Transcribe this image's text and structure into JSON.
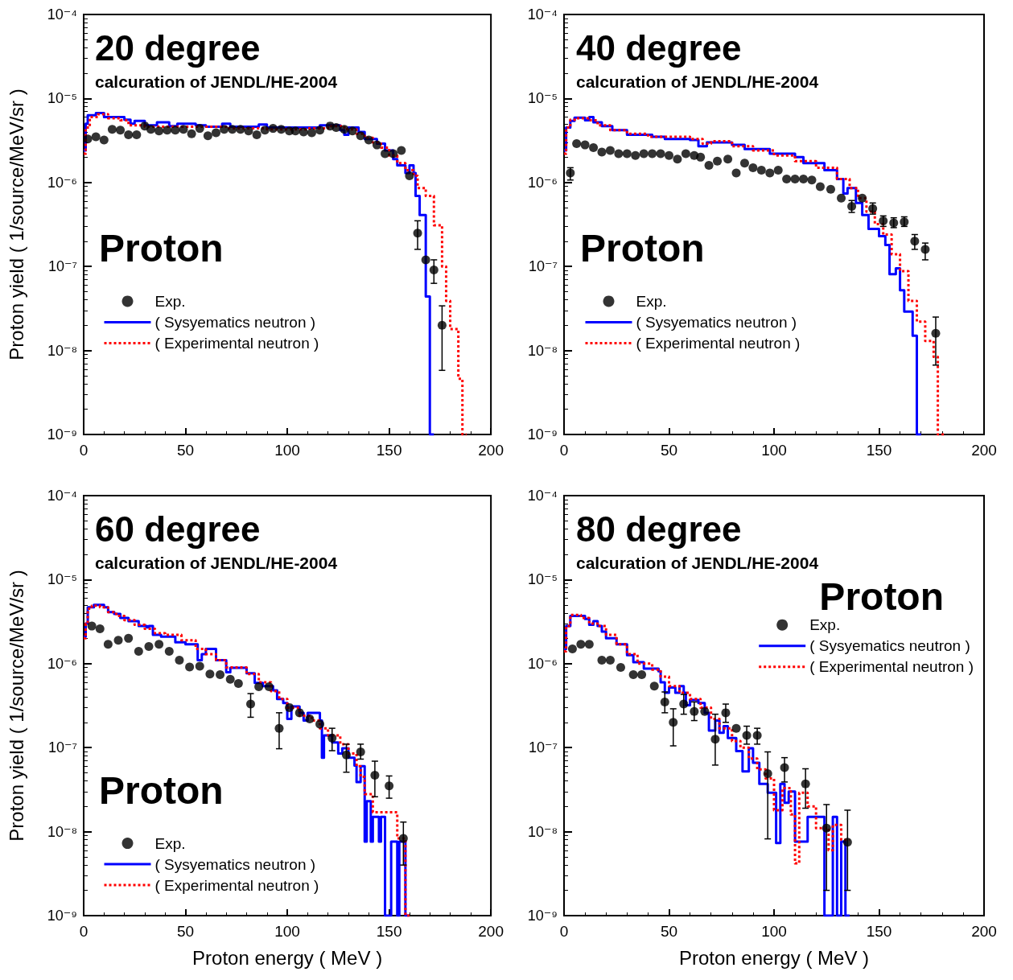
{
  "chart_data": [
    {
      "type": "step",
      "title": "20 degree",
      "subtitle": "calcuration of JENDL/HE-2004",
      "ylabel": "Proton yield ( 1/source/MeV/sr )",
      "annotations": [
        "Proton"
      ],
      "log": "y",
      "legend": "left",
      "grid": false,
      "xlim": [
        0,
        200
      ],
      "xticks": [
        0,
        50,
        100,
        150,
        200
      ],
      "ylim": [
        1e-09,
        0.0001
      ],
      "yticks": [
        {
          "value": 1e-09,
          "label": "10⁻⁹"
        },
        {
          "value": 1e-08,
          "label": "10⁻⁸"
        },
        {
          "value": 1e-07,
          "label": "10⁻⁷"
        },
        {
          "value": 1e-06,
          "label": "10⁻⁶"
        },
        {
          "value": 1e-05,
          "label": "10⁻⁵"
        },
        {
          "value": 0.0001,
          "label": "10⁻⁴"
        }
      ],
      "series": [
        {
          "name": "Exp.",
          "type": "scatter",
          "marker": "circle",
          "color": "#000000",
          "x": [
            2,
            6,
            10,
            14,
            18,
            22,
            26,
            30,
            33,
            37,
            41,
            45,
            49,
            53,
            57,
            61,
            65,
            69,
            73,
            77,
            81,
            85,
            89,
            93,
            97,
            101,
            104,
            108,
            112,
            116,
            121,
            124,
            128,
            132,
            136,
            140,
            144,
            148,
            152,
            156,
            160,
            164,
            168,
            172,
            176
          ],
          "values": [
            3.3e-06,
            3.5e-06,
            3.2e-06,
            4.3e-06,
            4.2e-06,
            3.7e-06,
            3.7e-06,
            4.7e-06,
            4.3e-06,
            4.1e-06,
            4.2e-06,
            4.2e-06,
            4.3e-06,
            3.8e-06,
            4.4e-06,
            3.6e-06,
            3.9e-06,
            4.3e-06,
            4.3e-06,
            4.3e-06,
            4.1e-06,
            3.7e-06,
            4.2e-06,
            4.4e-06,
            4.3e-06,
            4.1e-06,
            4.1e-06,
            4e-06,
            3.9e-06,
            4.2e-06,
            4.7e-06,
            4.5e-06,
            4.3e-06,
            4.1e-06,
            3.6e-06,
            3.2e-06,
            2.8e-06,
            2.2e-06,
            2.2e-06,
            2.4e-06,
            1.2e-06,
            2.5e-07,
            1.2e-07,
            9.1e-08,
            2e-08
          ],
          "errors": [
            null,
            null,
            null,
            null,
            null,
            null,
            null,
            null,
            null,
            null,
            null,
            null,
            null,
            null,
            null,
            null,
            null,
            null,
            null,
            null,
            null,
            null,
            null,
            null,
            null,
            null,
            null,
            null,
            null,
            null,
            null,
            null,
            null,
            null,
            null,
            null,
            null,
            null,
            null,
            null,
            null,
            [
              1.6e-07,
              3.5e-07
            ],
            null,
            [
              6.3e-08,
              1.2e-07
            ],
            [
              5.8e-09,
              3.4e-08
            ]
          ]
        },
        {
          "name": "( Sysyematics neutron )",
          "line_style": "solid",
          "color": "#0000ff",
          "x": [
            0,
            1,
            2,
            6,
            10,
            20,
            23,
            25,
            30,
            36,
            42,
            46,
            55,
            60,
            68,
            72,
            86,
            90,
            104,
            116,
            126,
            128,
            130,
            135,
            138,
            144,
            148,
            152,
            154,
            158,
            160,
            162,
            163,
            165,
            168,
            170,
            172
          ],
          "values": [
            2.4e-06,
            5e-06,
            6.3e-06,
            6.7e-06,
            6e-06,
            5.6e-06,
            5e-06,
            5.4e-06,
            4.8e-06,
            5.2e-06,
            4.7e-06,
            5e-06,
            4.8e-06,
            4.6e-06,
            5e-06,
            4.6e-06,
            4.9e-06,
            4.5e-06,
            4.5e-06,
            4.8e-06,
            4.2e-06,
            3.7e-06,
            4.5e-06,
            4e-06,
            3.3e-06,
            2.9e-06,
            2.4e-06,
            1.9e-06,
            1.6e-06,
            1.3e-06,
            1.6e-06,
            1.3e-06,
            6.9e-07,
            4.1e-07,
            4.4e-08,
            1e-09,
            1e-09
          ]
        },
        {
          "name": "( Experimental neutron )",
          "line_style": "dotted",
          "color": "#ff0000",
          "x": [
            0,
            1,
            3,
            7,
            12,
            18,
            22,
            30,
            50,
            70,
            90,
            110,
            120,
            128,
            134,
            138,
            142,
            146,
            150,
            154,
            158,
            162,
            164,
            168,
            172,
            176,
            178,
            180,
            184,
            186,
            188
          ],
          "values": [
            2.2e-06,
            4.5e-06,
            6e-06,
            6.5e-06,
            5.8e-06,
            5.5e-06,
            4.8e-06,
            4.6e-06,
            4.6e-06,
            4.4e-06,
            4.3e-06,
            4.4e-06,
            4.7e-06,
            4.3e-06,
            3.8e-06,
            3.4e-06,
            3e-06,
            2.6e-06,
            2.1e-06,
            1.7e-06,
            1.4e-06,
            1.2e-06,
            8.6e-07,
            6.9e-07,
            3.1e-07,
            1e-07,
            3.9e-08,
            1.8e-08,
            4.6e-09,
            1e-09,
            1e-09
          ]
        }
      ]
    },
    {
      "type": "step",
      "title": "40 degree",
      "subtitle": "calcuration of JENDL/HE-2004",
      "annotations": [
        "Proton"
      ],
      "log": "y",
      "legend": "left",
      "grid": false,
      "xlim": [
        0,
        200
      ],
      "xticks": [
        0,
        50,
        100,
        150,
        200
      ],
      "ylim": [
        1e-09,
        0.0001
      ],
      "yticks": [
        {
          "value": 1e-09,
          "label": "10⁻⁹"
        },
        {
          "value": 1e-08,
          "label": "10⁻⁸"
        },
        {
          "value": 1e-07,
          "label": "10⁻⁷"
        },
        {
          "value": 1e-06,
          "label": "10⁻⁶"
        },
        {
          "value": 1e-05,
          "label": "10⁻⁵"
        },
        {
          "value": 0.0001,
          "label": "10⁻⁴"
        }
      ],
      "series": [
        {
          "name": "Exp.",
          "type": "scatter",
          "marker": "circle",
          "color": "#000000",
          "x": [
            3,
            6,
            10,
            14,
            18,
            22,
            26,
            30,
            34,
            38,
            42,
            46,
            50,
            54,
            58,
            62,
            65,
            69,
            73,
            78,
            82,
            86,
            90,
            94,
            98,
            102,
            106,
            110,
            114,
            118,
            122,
            127,
            132,
            137,
            142,
            147,
            152,
            157,
            162,
            167,
            172,
            177
          ],
          "values": [
            1.3e-06,
            2.9e-06,
            2.8e-06,
            2.6e-06,
            2.3e-06,
            2.4e-06,
            2.2e-06,
            2.2e-06,
            2.1e-06,
            2.2e-06,
            2.2e-06,
            2.2e-06,
            2.1e-06,
            1.9e-06,
            2.2e-06,
            2.1e-06,
            2e-06,
            1.6e-06,
            1.8e-06,
            1.9e-06,
            1.3e-06,
            1.7e-06,
            1.5e-06,
            1.4e-06,
            1.3e-06,
            1.4e-06,
            1.1e-06,
            1.1e-06,
            1.1e-06,
            1.07e-06,
            8.9e-07,
            8.3e-07,
            6.5e-07,
            5.2e-07,
            6.5e-07,
            4.9e-07,
            3.5e-07,
            3.3e-07,
            3.4e-07,
            2e-07,
            1.6e-07,
            1.6e-08
          ],
          "errors": [
            [
              1.07e-06,
              1.5e-06
            ],
            null,
            null,
            null,
            null,
            null,
            null,
            null,
            null,
            null,
            null,
            null,
            null,
            null,
            null,
            null,
            null,
            null,
            null,
            null,
            null,
            null,
            null,
            null,
            null,
            null,
            null,
            null,
            null,
            null,
            null,
            null,
            null,
            [
              4.4e-07,
              6.1e-07
            ],
            null,
            [
              4.2e-07,
              5.7e-07
            ],
            [
              3e-07,
              4e-07
            ],
            [
              2.9e-07,
              3.8e-07
            ],
            [
              3e-07,
              3.9e-07
            ],
            [
              1.6e-07,
              2.4e-07
            ],
            [
              1.2e-07,
              1.9e-07
            ],
            [
              6.7e-09,
              2.5e-08
            ]
          ]
        },
        {
          "name": "( Sysyematics neutron )",
          "line_style": "solid",
          "color": "#0000ff",
          "x": [
            0,
            1,
            3,
            5,
            10,
            12,
            14,
            18,
            23,
            30,
            42,
            48,
            60,
            64,
            68,
            80,
            86,
            95,
            98,
            104,
            110,
            114,
            124,
            130,
            133,
            135,
            139,
            142,
            145,
            150,
            153,
            155,
            158,
            160,
            162,
            166,
            168,
            170
          ],
          "values": [
            2.4e-06,
            4.5e-06,
            5.4e-06,
            5.9e-06,
            5.5e-06,
            6e-06,
            5.2e-06,
            4.7e-06,
            4.2e-06,
            3.7e-06,
            3.5e-06,
            3.3e-06,
            3.2e-06,
            2.7e-06,
            3e-06,
            2.8e-06,
            2.5e-06,
            2.5e-06,
            2.2e-06,
            2.2e-06,
            2e-06,
            1.7e-06,
            1.4e-06,
            1.1e-06,
            7.4e-07,
            8.6e-07,
            5.7e-07,
            4.1e-07,
            2.8e-07,
            2.3e-07,
            1.8e-07,
            8.1e-08,
            9.5e-08,
            5.2e-08,
            2.9e-08,
            1.5e-08,
            1e-09,
            1e-09
          ]
        },
        {
          "name": "( Experimental neutron )",
          "line_style": "dotted",
          "color": "#ff0000",
          "x": [
            0,
            1,
            3,
            6,
            12,
            16,
            22,
            30,
            40,
            50,
            60,
            66,
            70,
            80,
            90,
            100,
            110,
            120,
            130,
            136,
            140,
            144,
            148,
            152,
            156,
            160,
            164,
            168,
            172,
            176,
            178,
            180,
            182
          ],
          "values": [
            2.2e-06,
            4.5e-06,
            5.6e-06,
            5.8e-06,
            5.5e-06,
            4.8e-06,
            4.2e-06,
            3.8e-06,
            3.5e-06,
            3.5e-06,
            3.3e-06,
            2.9e-06,
            3.1e-06,
            2.7e-06,
            2.4e-06,
            2.1e-06,
            1.8e-06,
            1.5e-06,
            1.1e-06,
            8.6e-07,
            6.5e-07,
            4.5e-07,
            3.2e-07,
            2.4e-07,
            1.4e-07,
            8.8e-08,
            3.9e-08,
            2.2e-08,
            1.3e-08,
            8.4e-09,
            1e-09,
            1e-09,
            1e-09
          ]
        }
      ]
    },
    {
      "type": "step",
      "title": "60 degree",
      "subtitle": "calcuration of JENDL/HE-2004",
      "xlabel": "Proton energy ( MeV )",
      "ylabel": "Proton yield ( 1/source/MeV/sr )",
      "annotations": [
        "Proton"
      ],
      "log": "y",
      "legend": "bottom left",
      "grid": false,
      "xlim": [
        0,
        200
      ],
      "xticks": [
        0,
        50,
        100,
        150,
        200
      ],
      "ylim": [
        1e-09,
        0.0001
      ],
      "yticks": [
        {
          "value": 1e-09,
          "label": "10⁻⁹"
        },
        {
          "value": 1e-08,
          "label": "10⁻⁸"
        },
        {
          "value": 1e-07,
          "label": "10⁻⁷"
        },
        {
          "value": 1e-06,
          "label": "10⁻⁶"
        },
        {
          "value": 1e-05,
          "label": "10⁻⁵"
        },
        {
          "value": 0.0001,
          "label": "10⁻⁴"
        }
      ],
      "series": [
        {
          "name": "Exp.",
          "type": "scatter",
          "marker": "circle",
          "color": "#000000",
          "x": [
            4,
            8,
            12,
            17,
            22,
            27,
            32,
            37,
            42,
            47,
            52,
            57,
            62,
            67,
            72,
            76,
            82,
            86,
            91,
            96,
            101,
            106,
            111,
            116,
            122,
            129,
            136,
            143,
            150,
            157
          ],
          "values": [
            2.8e-06,
            2.6e-06,
            1.7e-06,
            1.9e-06,
            2e-06,
            1.4e-06,
            1.6e-06,
            1.7e-06,
            1.4e-06,
            1.1e-06,
            9.1e-07,
            9.3e-07,
            7.5e-07,
            7.4e-07,
            6.5e-07,
            5.8e-07,
            3.3e-07,
            5.3e-07,
            5.3e-07,
            1.7e-07,
            3e-07,
            2.6e-07,
            2.2e-07,
            1.9e-07,
            1.3e-07,
            8.2e-08,
            8.9e-08,
            4.7e-08,
            3.5e-08,
            8.3e-09
          ],
          "errors": [
            null,
            null,
            null,
            null,
            null,
            null,
            null,
            null,
            null,
            null,
            null,
            null,
            null,
            null,
            null,
            null,
            [
              2.3e-07,
              4.4e-07
            ],
            null,
            null,
            [
              9.7e-08,
              2.6e-07
            ],
            null,
            null,
            null,
            null,
            [
              9.2e-08,
              1.7e-07
            ],
            [
              5.1e-08,
              1.1e-07
            ],
            [
              7.3e-08,
              1.1e-07
            ],
            [
              2.6e-08,
              6.9e-08
            ],
            [
              2.5e-08,
              4.6e-08
            ],
            [
              4e-09,
              1.3e-08
            ]
          ]
        },
        {
          "name": "( Sysyematics neutron )",
          "line_style": "solid",
          "color": "#0000ff",
          "x": [
            0,
            1,
            2,
            5,
            10,
            12,
            15,
            18,
            22,
            27,
            31,
            32,
            34,
            38,
            45,
            50,
            56,
            58,
            60,
            65,
            70,
            72,
            80,
            84,
            88,
            93,
            95,
            98,
            100,
            102,
            106,
            108,
            110,
            116,
            117,
            118,
            122,
            125,
            127,
            130,
            133,
            134,
            136,
            138,
            139,
            141,
            142,
            145,
            146,
            148,
            151,
            154,
            155,
            158,
            160
          ],
          "values": [
            2.1e-06,
            3e-06,
            4.7e-06,
            5e-06,
            4.7e-06,
            4.1e-06,
            3.9e-06,
            3.5e-06,
            3.2e-06,
            2.8e-06,
            2.7e-06,
            2.8e-06,
            2.2e-06,
            2.1e-06,
            1.8e-06,
            1.7e-06,
            1.1e-06,
            1.3e-06,
            1.5e-06,
            1.1e-06,
            7.9e-07,
            8.9e-07,
            7.7e-07,
            5.9e-07,
            5.4e-07,
            4.8e-07,
            3.8e-07,
            3.4e-07,
            2.2e-07,
            3.1e-07,
            2.6e-07,
            2.1e-07,
            2.6e-07,
            2.1e-07,
            7.6e-08,
            1.4e-07,
            1.15e-07,
            8.5e-08,
            9.8e-08,
            7.6e-08,
            6.1e-08,
            3.9e-08,
            6e-08,
            7.6e-09,
            2.3e-08,
            7.6e-09,
            1.5e-08,
            7.6e-09,
            1.5e-08,
            1e-09,
            7.6e-09,
            1e-09,
            7.6e-09,
            1e-09,
            1e-09
          ]
        },
        {
          "name": "( Experimental neutron )",
          "line_style": "dotted",
          "color": "#ff0000",
          "x": [
            0,
            1,
            2,
            4,
            8,
            12,
            16,
            20,
            25,
            30,
            35,
            40,
            48,
            55,
            60,
            65,
            70,
            80,
            86,
            92,
            96,
            100,
            106,
            112,
            116,
            120,
            126,
            130,
            134,
            136,
            138,
            142,
            154,
            158,
            160
          ],
          "values": [
            2e-06,
            3e-06,
            4.5e-06,
            4.9e-06,
            4.7e-06,
            4.1e-06,
            3.7e-06,
            3.3e-06,
            2.9e-06,
            2.6e-06,
            2.3e-06,
            2.2e-06,
            1.9e-06,
            1.5e-06,
            1.3e-06,
            1.1e-06,
            9e-07,
            7.5e-07,
            6e-07,
            4.7e-07,
            3.8e-07,
            3e-07,
            2.4e-07,
            2.1e-07,
            1.7e-07,
            1.4e-07,
            1.1e-07,
            8.5e-08,
            6e-08,
            4.5e-08,
            2.8e-08,
            1.7e-08,
            8.3e-09,
            1e-09,
            1e-09
          ]
        }
      ]
    },
    {
      "type": "step",
      "title": "80 degree",
      "subtitle": "calcuration of JENDL/HE-2004",
      "xlabel": "Proton energy ( MeV )",
      "annotations": [
        "Proton"
      ],
      "log": "y",
      "legend": "top right",
      "grid": false,
      "xlim": [
        0,
        200
      ],
      "xticks": [
        0,
        50,
        100,
        150,
        200
      ],
      "ylim": [
        1e-09,
        0.0001
      ],
      "yticks": [
        {
          "value": 1e-09,
          "label": "10⁻⁹"
        },
        {
          "value": 1e-08,
          "label": "10⁻⁸"
        },
        {
          "value": 1e-07,
          "label": "10⁻⁷"
        },
        {
          "value": 1e-06,
          "label": "10⁻⁶"
        },
        {
          "value": 1e-05,
          "label": "10⁻⁵"
        },
        {
          "value": 0.0001,
          "label": "10⁻⁴"
        }
      ],
      "series": [
        {
          "name": "Exp.",
          "type": "scatter",
          "marker": "circle",
          "color": "#000000",
          "x": [
            4,
            8,
            12,
            18,
            22,
            27,
            33,
            37,
            43,
            48,
            52,
            57,
            62,
            67,
            72,
            77,
            82,
            87,
            92,
            97,
            105,
            115,
            125,
            135
          ],
          "values": [
            1.5e-06,
            1.7e-06,
            1.7e-06,
            1.1e-06,
            1.1e-06,
            9e-07,
            7.4e-07,
            7.4e-07,
            5.4e-07,
            3.5e-07,
            2e-07,
            3.3e-07,
            2.7e-07,
            2.7e-07,
            1.26e-07,
            2.6e-07,
            1.7e-07,
            1.4e-07,
            1.4e-07,
            4.9e-08,
            5.8e-08,
            3.7e-08,
            1.1e-08,
            7.5e-09
          ],
          "errors": [
            null,
            null,
            null,
            null,
            null,
            null,
            null,
            null,
            null,
            [
              2.6e-07,
              4.6e-07
            ],
            [
              1.05e-07,
              2.9e-07
            ],
            [
              2.5e-07,
              4.3e-07
            ],
            [
              2.1e-07,
              3.5e-07
            ],
            null,
            [
              6.2e-08,
              2.5e-07
            ],
            [
              2e-07,
              3.3e-07
            ],
            null,
            [
              1.1e-07,
              1.8e-07
            ],
            [
              1.1e-07,
              1.7e-07
            ],
            [
              8.2e-09,
              8.9e-08
            ],
            [
              3.9e-08,
              7.6e-08
            ],
            [
              1.9e-08,
              5.6e-08
            ],
            [
              2e-09,
              2.1e-08
            ],
            [
              2e-09,
              1.8e-08
            ]
          ]
        },
        {
          "name": "( Sysyematics neutron )",
          "line_style": "solid",
          "color": "#0000ff",
          "x": [
            0,
            1,
            3,
            10,
            12,
            14,
            16,
            18,
            20,
            25,
            30,
            33,
            38,
            45,
            46,
            48,
            50,
            53,
            55,
            57,
            58,
            60,
            64,
            67,
            69,
            72,
            74,
            76,
            78,
            82,
            85,
            88,
            90,
            93,
            97,
            101,
            103,
            105,
            107,
            110,
            116,
            124,
            128,
            130,
            132,
            134,
            136
          ],
          "values": [
            1.5e-06,
            2.8e-06,
            3.7e-06,
            3.4e-06,
            2.9e-06,
            3.2e-06,
            2.8e-06,
            2.4e-06,
            2e-06,
            1.7e-06,
            1.26e-06,
            1.04e-06,
            8.7e-07,
            8.1e-07,
            6e-07,
            4.5e-07,
            5.2e-07,
            4.5e-07,
            5.4e-07,
            4.5e-07,
            3.2e-07,
            3.7e-07,
            3.4e-07,
            2.6e-07,
            1.6e-07,
            2.1e-07,
            1.5e-07,
            1.8e-07,
            1.3e-07,
            9.1e-08,
            5.2e-08,
            9.8e-08,
            6.6e-08,
            3.7e-08,
            2.9e-08,
            7.3e-09,
            3.7e-08,
            2.2e-08,
            3e-08,
            7.6e-09,
            1.5e-08,
            1e-09,
            1.5e-08,
            1e-09,
            7.6e-09,
            1e-09,
            1e-09
          ]
        },
        {
          "name": "( Experimental neutron )",
          "line_style": "dotted",
          "color": "#ff0000",
          "x": [
            0,
            1,
            3,
            8,
            12,
            16,
            20,
            25,
            30,
            35,
            42,
            46,
            50,
            55,
            60,
            65,
            70,
            74,
            80,
            84,
            88,
            92,
            96,
            100,
            104,
            108,
            110,
            112,
            116,
            120,
            126,
            128,
            132,
            136
          ],
          "values": [
            1.4e-06,
            2.8e-06,
            3.8e-06,
            3.5e-06,
            3e-06,
            2.8e-06,
            2.2e-06,
            1.7e-06,
            1.3e-06,
            1e-06,
            8.5e-07,
            7e-07,
            5.4e-07,
            4.5e-07,
            3.8e-07,
            3e-07,
            2.2e-07,
            1.7e-07,
            1.2e-07,
            1e-07,
            7.4e-08,
            5.5e-08,
            4.3e-08,
            1.8e-08,
            3.3e-08,
            1.6e-08,
            4.2e-09,
            2.9e-08,
            2e-08,
            1.1e-08,
            6e-09,
            1.2e-08,
            8e-09,
            8e-09
          ]
        }
      ]
    }
  ]
}
